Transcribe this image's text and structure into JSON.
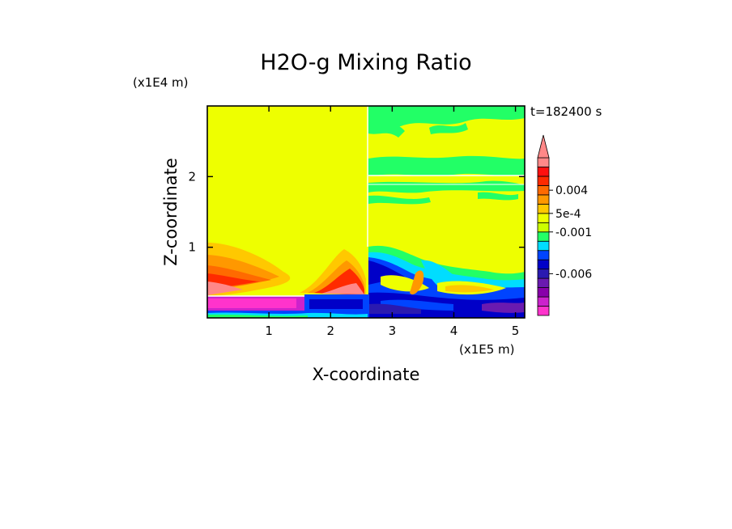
{
  "chart_data": {
    "type": "heatmap",
    "title": "H2O-g Mixing Ratio",
    "xlabel": "X-coordinate",
    "ylabel": "Z-coordinate",
    "x_unit": "(x1E5 m)",
    "y_unit": "(x1E4 m)",
    "time_label": "t=182400 s",
    "xlim": [
      0,
      5.15
    ],
    "ylim": [
      0,
      3
    ],
    "x_ticks": [
      1,
      2,
      3,
      4,
      5
    ],
    "y_ticks": [
      1,
      2
    ],
    "colorbar": {
      "levels": [
        {
          "color": "#ff33cc"
        },
        {
          "color": "#cc22cc"
        },
        {
          "color": "#8800aa"
        },
        {
          "color": "#6a1ab0"
        },
        {
          "color": "#2a1ab0"
        },
        {
          "color": "#0000c8"
        },
        {
          "color": "#0044ff"
        },
        {
          "color": "#00ddff"
        },
        {
          "color": "#22ff66"
        },
        {
          "color": "#ccff00"
        },
        {
          "color": "#eeff00"
        },
        {
          "color": "#ffc800"
        },
        {
          "color": "#ff9800"
        },
        {
          "color": "#ff6a00"
        },
        {
          "color": "#ff2a00"
        },
        {
          "color": "#ff1010"
        },
        {
          "color": "#ff8888"
        }
      ],
      "labels": [
        {
          "text": "0.004",
          "level": 13.5
        },
        {
          "text": "5e-4",
          "level": 11
        },
        {
          "text": "-0.001",
          "level": 9
        },
        {
          "text": "-0.006",
          "level": 4.5
        }
      ]
    }
  }
}
